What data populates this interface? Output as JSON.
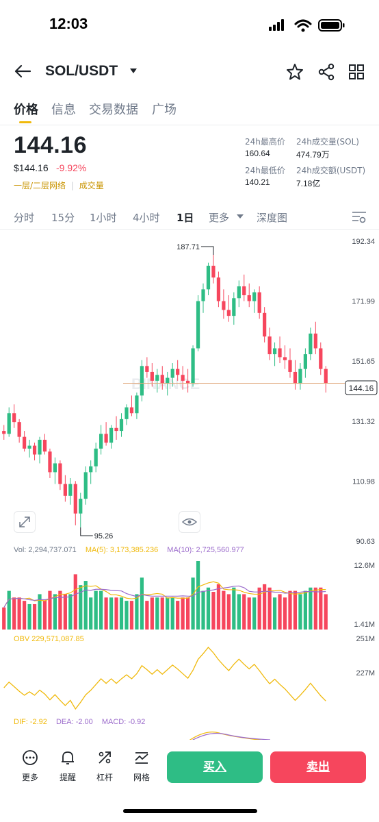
{
  "status_bar": {
    "time": "12:03"
  },
  "header": {
    "pair": "SOL/USDT"
  },
  "tabs": [
    "价格",
    "信息",
    "交易数据",
    "广场"
  ],
  "price": {
    "last": "144.16",
    "usd": "$144.16",
    "change": "-9.92%",
    "network_label": "一层/二层网络",
    "volume_label": "成交量"
  },
  "stats": {
    "high_label": "24h最高价",
    "high": "160.64",
    "vol_sol_label": "24h成交量(SOL)",
    "vol_sol": "474.79万",
    "low_label": "24h最低价",
    "low": "140.21",
    "vol_usdt_label": "24h成交额(USDT)",
    "vol_usdt": "7.18亿"
  },
  "periods": [
    "分时",
    "15分",
    "1小时",
    "4小时",
    "1日",
    "更多",
    "深度图"
  ],
  "active_period": "1日",
  "chart": {
    "y_ticks": [
      "192.34",
      "171.99",
      "151.65",
      "131.32",
      "110.98",
      "90.63"
    ],
    "high_marker": "187.71",
    "low_marker": "95.26",
    "last_price_tag": "144.16",
    "watermark": "BINANCE"
  },
  "volume": {
    "vol_label": "Vol: 2,294,737.071",
    "ma5_label": "MA(5): 3,173,385.236",
    "ma10_label": "MA(10): 2,725,560.977",
    "y_top": "12.6M",
    "y_bottom": "1.41M"
  },
  "obv": {
    "label": "OBV 229,571,087.85",
    "y_top": "251M",
    "y_bottom": "227M"
  },
  "macd": {
    "dif": "DIF: -2.92",
    "dea": "DEA: -2.00",
    "macd": "MACD: -0.92"
  },
  "bottom_nav": [
    {
      "label": "更多",
      "icon": "more-icon"
    },
    {
      "label": "提醒",
      "icon": "bell-icon"
    },
    {
      "label": "杠杆",
      "icon": "leverage-icon"
    },
    {
      "label": "网格",
      "icon": "grid-trading-icon"
    }
  ],
  "actions": {
    "buy": "买入",
    "sell": "卖出"
  },
  "colors": {
    "up": "#2ebd85",
    "down": "#f6465d",
    "accent": "#f0b90b",
    "ma10": "#9b6bcb"
  },
  "chart_data": {
    "type": "candlestick",
    "ylim": [
      90.63,
      192.34
    ],
    "candles": [
      [
        128,
        130,
        125,
        127
      ],
      [
        127,
        136,
        126,
        134
      ],
      [
        134,
        137,
        129,
        131
      ],
      [
        131,
        132,
        124,
        126
      ],
      [
        126,
        128,
        121,
        122
      ],
      [
        122,
        125,
        119,
        123
      ],
      [
        123,
        124,
        118,
        120
      ],
      [
        120,
        126,
        117,
        125
      ],
      [
        125,
        127,
        120,
        121
      ],
      [
        121,
        122,
        112,
        114
      ],
      [
        114,
        119,
        110,
        117
      ],
      [
        117,
        118,
        108,
        110
      ],
      [
        110,
        113,
        104,
        106
      ],
      [
        106,
        112,
        103,
        110
      ],
      [
        110,
        111,
        96,
        100
      ],
      [
        100,
        107,
        95.26,
        105
      ],
      [
        105,
        116,
        103,
        114
      ],
      [
        114,
        118,
        110,
        116
      ],
      [
        116,
        124,
        114,
        122
      ],
      [
        122,
        130,
        120,
        127
      ],
      [
        127,
        131,
        123,
        124
      ],
      [
        124,
        130,
        122,
        129
      ],
      [
        129,
        133,
        125,
        128
      ],
      [
        128,
        134,
        126,
        132
      ],
      [
        132,
        137,
        130,
        136
      ],
      [
        136,
        140,
        133,
        134
      ],
      [
        134,
        141,
        132,
        140
      ],
      [
        140,
        152,
        138,
        150
      ],
      [
        150,
        153,
        146,
        148
      ],
      [
        148,
        151,
        143,
        145
      ],
      [
        145,
        149,
        141,
        147
      ],
      [
        147,
        150,
        142,
        144
      ],
      [
        144,
        148,
        140,
        146
      ],
      [
        146,
        151,
        143,
        149
      ],
      [
        149,
        152,
        145,
        147
      ],
      [
        147,
        150,
        142,
        145
      ],
      [
        145,
        149,
        141,
        144
      ],
      [
        144,
        157,
        143,
        156
      ],
      [
        156,
        174,
        155,
        172
      ],
      [
        172,
        178,
        168,
        176
      ],
      [
        176,
        185,
        174,
        184
      ],
      [
        184,
        187.71,
        178,
        180
      ],
      [
        180,
        182,
        170,
        172
      ],
      [
        172,
        176,
        166,
        169
      ],
      [
        169,
        174,
        165,
        167
      ],
      [
        167,
        175,
        164,
        173
      ],
      [
        173,
        179,
        170,
        177
      ],
      [
        177,
        181,
        172,
        174
      ],
      [
        174,
        178,
        170,
        172
      ],
      [
        172,
        176,
        168,
        175
      ],
      [
        175,
        177,
        166,
        168
      ],
      [
        168,
        170,
        158,
        160
      ],
      [
        160,
        163,
        152,
        154
      ],
      [
        154,
        158,
        150,
        156
      ],
      [
        156,
        160,
        151,
        153
      ],
      [
        153,
        157,
        149,
        152
      ],
      [
        152,
        156,
        146,
        148
      ],
      [
        148,
        152,
        142,
        144
      ],
      [
        144,
        151,
        142,
        149
      ],
      [
        149,
        156,
        146,
        154
      ],
      [
        154,
        163,
        152,
        161
      ],
      [
        161,
        165,
        154,
        156
      ],
      [
        156,
        158,
        147,
        149
      ],
      [
        149,
        150,
        141,
        144.16
      ]
    ]
  }
}
